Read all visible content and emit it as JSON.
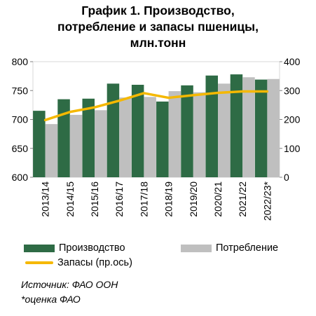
{
  "title_lines": [
    "График 1. Производство,",
    "потребление и запасы пшеницы,",
    "млн.тонн"
  ],
  "chart_data": {
    "type": "bar",
    "categories": [
      "2013/14",
      "2014/15",
      "2015/16",
      "2016/17",
      "2017/18",
      "2018/19",
      "2019/20",
      "2020/21",
      "2021/22",
      "2022/23*"
    ],
    "series": [
      {
        "name": "Производство",
        "kind": "bar",
        "axis": "left",
        "color": "#2e6b45",
        "values": [
          715,
          735,
          736,
          762,
          760,
          731,
          759,
          776,
          778,
          769
        ]
      },
      {
        "name": "Потребление",
        "kind": "bar",
        "axis": "left",
        "color": "#bfbfbf",
        "values": [
          692,
          708,
          716,
          738,
          739,
          749,
          747,
          762,
          773,
          770
        ]
      },
      {
        "name": "Запасы (пр.ось)",
        "kind": "line",
        "axis": "right",
        "color": "#f5b800",
        "values": [
          198,
          226,
          242,
          265,
          291,
          275,
          284,
          292,
          297,
          297
        ]
      }
    ],
    "y_left": {
      "min": 600,
      "max": 800,
      "ticks": [
        600,
        650,
        700,
        750,
        800
      ]
    },
    "y_right": {
      "min": 0,
      "max": 400,
      "ticks": [
        0,
        100,
        200,
        300,
        400
      ]
    }
  },
  "legend": {
    "production": "Производство",
    "consumption": "Потребление",
    "stocks": "Запасы (пр.ось)"
  },
  "notes": {
    "source": "Источник: ФАО ООН",
    "estimate": "*оценка ФАО"
  }
}
